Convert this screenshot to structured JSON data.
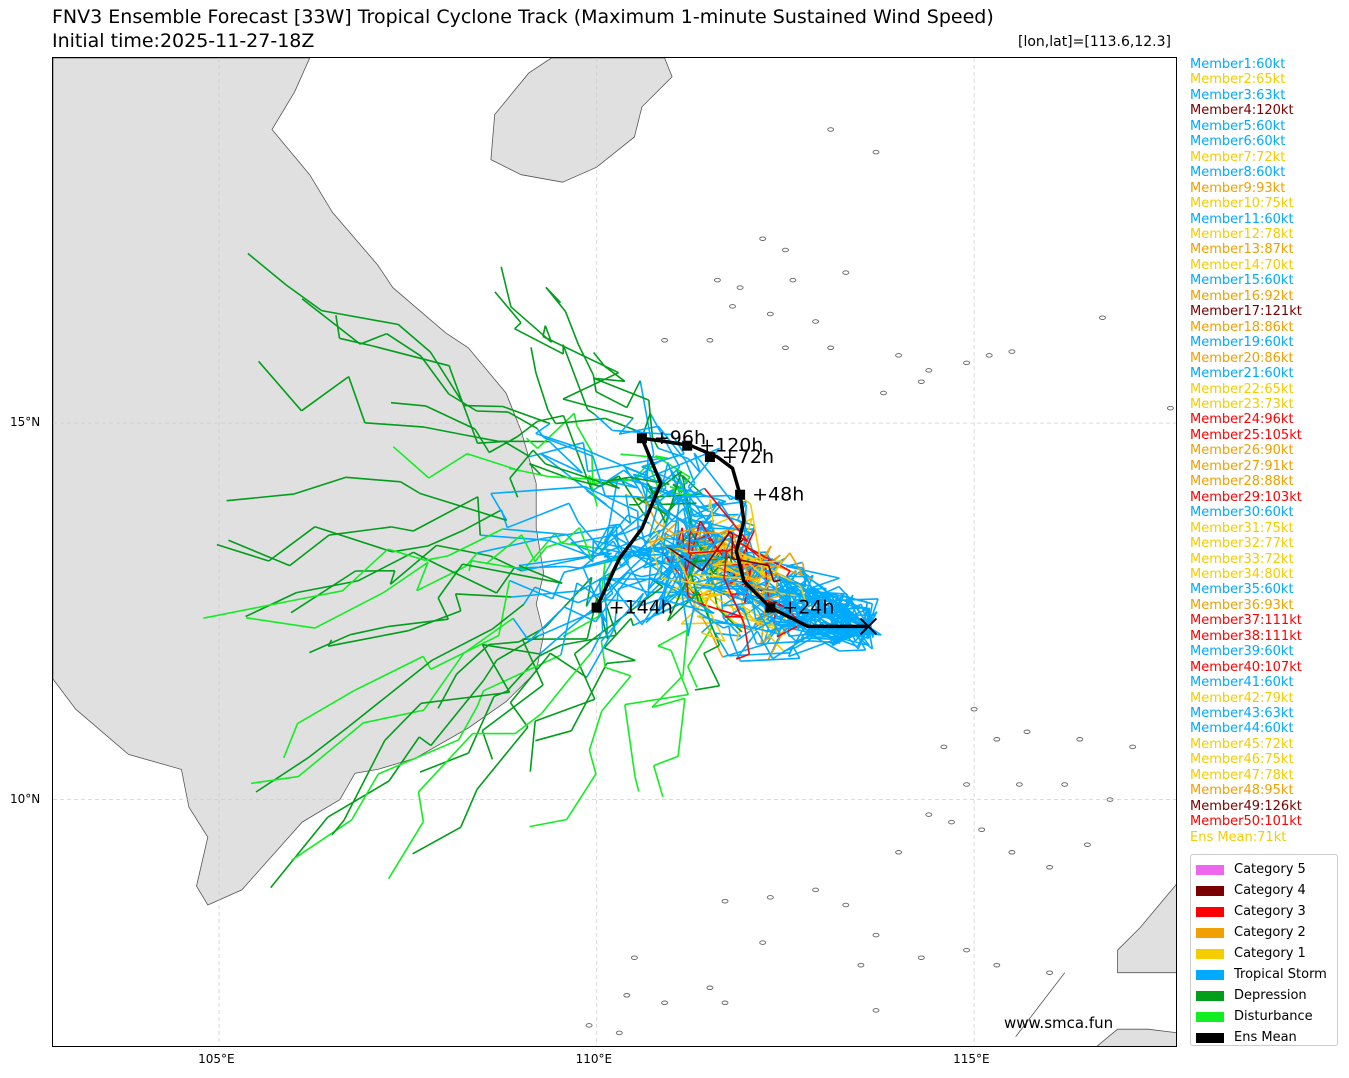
{
  "title": "FNV3 Ensemble Forecast [33W] Tropical Cyclone Track (Maximum 1-minute Sustained Wind Speed)",
  "subtitle": "Initial time:2025-11-27-18Z",
  "position_readout": "[lon,lat]=[113.6,12.3]",
  "watermark": "www.smca.fun",
  "map": {
    "lon_range": [
      102.8,
      117.7
    ],
    "lat_range": [
      6.7,
      19.85
    ],
    "x_ticks": [
      {
        "lon": 105,
        "label": "105°E"
      },
      {
        "lon": 110,
        "label": "110°E"
      },
      {
        "lon": 115,
        "label": "115°E"
      }
    ],
    "y_ticks": [
      {
        "lat": 15,
        "label": "15°N"
      },
      {
        "lat": 10,
        "label": "10°N"
      }
    ],
    "grid": true,
    "land_color": "#e0e0e0",
    "coast_color": "#555555"
  },
  "initial_position": {
    "lon": 113.6,
    "lat": 12.3
  },
  "ens_mean": {
    "color": "#000000",
    "track": [
      [
        113.6,
        12.3
      ],
      [
        112.8,
        12.3
      ],
      [
        112.3,
        12.55
      ],
      [
        111.95,
        12.9
      ],
      [
        111.85,
        13.3
      ],
      [
        111.95,
        13.7
      ],
      [
        111.9,
        14.05
      ],
      [
        111.8,
        14.4
      ],
      [
        111.6,
        14.55
      ],
      [
        111.25,
        14.7
      ],
      [
        110.95,
        14.75
      ],
      [
        110.6,
        14.8
      ],
      [
        110.85,
        14.2
      ],
      [
        110.6,
        13.6
      ],
      [
        110.3,
        13.2
      ],
      [
        110,
        12.55
      ]
    ],
    "labeled_points": [
      {
        "lon": 112.3,
        "lat": 12.55,
        "label": "+24h"
      },
      {
        "lon": 111.9,
        "lat": 14.05,
        "label": "+48h"
      },
      {
        "lon": 111.5,
        "lat": 14.55,
        "label": "+72h"
      },
      {
        "lon": 110.6,
        "lat": 14.8,
        "label": "+96h"
      },
      {
        "lon": 111.2,
        "lat": 14.7,
        "label": "+120h"
      },
      {
        "lon": 110,
        "lat": 12.55,
        "label": "+144h"
      }
    ]
  },
  "members": [
    {
      "text": "Member1:60kt",
      "color": "#00aaff"
    },
    {
      "text": "Member2:65kt",
      "color": "#f5cc00"
    },
    {
      "text": "Member3:63kt",
      "color": "#00aaff"
    },
    {
      "text": "Member4:120kt",
      "color": "#7a0000"
    },
    {
      "text": "Member5:60kt",
      "color": "#00aaff"
    },
    {
      "text": "Member6:60kt",
      "color": "#00aaff"
    },
    {
      "text": "Member7:72kt",
      "color": "#f5cc00"
    },
    {
      "text": "Member8:60kt",
      "color": "#00aaff"
    },
    {
      "text": "Member9:93kt",
      "color": "#f0a000"
    },
    {
      "text": "Member10:75kt",
      "color": "#f5cc00"
    },
    {
      "text": "Member11:60kt",
      "color": "#00aaff"
    },
    {
      "text": "Member12:78kt",
      "color": "#f5cc00"
    },
    {
      "text": "Member13:87kt",
      "color": "#f0a000"
    },
    {
      "text": "Member14:70kt",
      "color": "#f5cc00"
    },
    {
      "text": "Member15:60kt",
      "color": "#00aaff"
    },
    {
      "text": "Member16:92kt",
      "color": "#f0a000"
    },
    {
      "text": "Member17:121kt",
      "color": "#7a0000"
    },
    {
      "text": "Member18:86kt",
      "color": "#f0a000"
    },
    {
      "text": "Member19:60kt",
      "color": "#00aaff"
    },
    {
      "text": "Member20:86kt",
      "color": "#f0a000"
    },
    {
      "text": "Member21:60kt",
      "color": "#00aaff"
    },
    {
      "text": "Member22:65kt",
      "color": "#f5cc00"
    },
    {
      "text": "Member23:73kt",
      "color": "#f5cc00"
    },
    {
      "text": "Member24:96kt",
      "color": "#ff0000"
    },
    {
      "text": "Member25:105kt",
      "color": "#ff0000"
    },
    {
      "text": "Member26:90kt",
      "color": "#f0a000"
    },
    {
      "text": "Member27:91kt",
      "color": "#f0a000"
    },
    {
      "text": "Member28:88kt",
      "color": "#f0a000"
    },
    {
      "text": "Member29:103kt",
      "color": "#ff0000"
    },
    {
      "text": "Member30:60kt",
      "color": "#00aaff"
    },
    {
      "text": "Member31:75kt",
      "color": "#f5cc00"
    },
    {
      "text": "Member32:77kt",
      "color": "#f5cc00"
    },
    {
      "text": "Member33:72kt",
      "color": "#f5cc00"
    },
    {
      "text": "Member34:80kt",
      "color": "#f5cc00"
    },
    {
      "text": "Member35:60kt",
      "color": "#00aaff"
    },
    {
      "text": "Member36:93kt",
      "color": "#f0a000"
    },
    {
      "text": "Member37:111kt",
      "color": "#ff0000"
    },
    {
      "text": "Member38:111kt",
      "color": "#ff0000"
    },
    {
      "text": "Member39:60kt",
      "color": "#00aaff"
    },
    {
      "text": "Member40:107kt",
      "color": "#ff0000"
    },
    {
      "text": "Member41:60kt",
      "color": "#00aaff"
    },
    {
      "text": "Member42:79kt",
      "color": "#f5cc00"
    },
    {
      "text": "Member43:63kt",
      "color": "#00aaff"
    },
    {
      "text": "Member44:60kt",
      "color": "#00aaff"
    },
    {
      "text": "Member45:72kt",
      "color": "#f5cc00"
    },
    {
      "text": "Member46:75kt",
      "color": "#f5cc00"
    },
    {
      "text": "Member47:78kt",
      "color": "#f5cc00"
    },
    {
      "text": "Member48:95kt",
      "color": "#f0a000"
    },
    {
      "text": "Member49:126kt",
      "color": "#7a0000"
    },
    {
      "text": "Member50:101kt",
      "color": "#ff0000"
    },
    {
      "text": "Ens Mean:71kt",
      "color": "#f5cc00"
    }
  ],
  "legend": [
    {
      "label": "Category 5",
      "color": "#ee66ee"
    },
    {
      "label": "Category 4",
      "color": "#7a0000"
    },
    {
      "label": "Category 3",
      "color": "#ff0000"
    },
    {
      "label": "Category 2",
      "color": "#f0a000"
    },
    {
      "label": "Category 1",
      "color": "#f5cc00"
    },
    {
      "label": "Tropical Storm",
      "color": "#00aaff"
    },
    {
      "label": "Depression",
      "color": "#009e1a"
    },
    {
      "label": "Disturbance",
      "color": "#11ee22"
    },
    {
      "label": "Ens Mean",
      "color": "#000000"
    }
  ]
}
